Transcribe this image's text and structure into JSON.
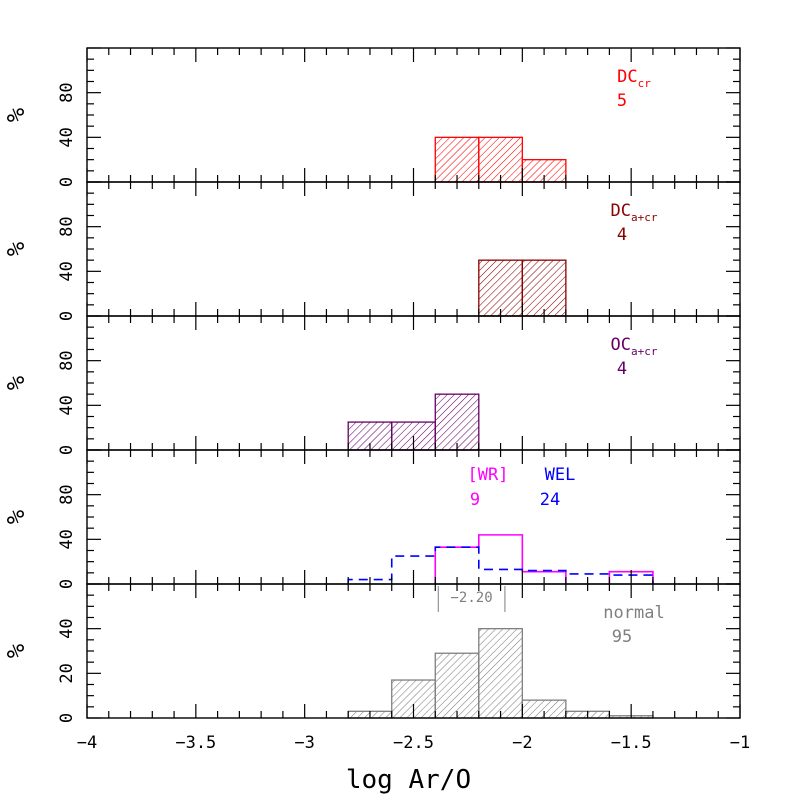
{
  "chart_data": {
    "type": "bar",
    "xlabel": "log Ar/O",
    "xlim": [
      -4,
      -1
    ],
    "x_ticks": [
      "−4",
      "−3.5",
      "−3",
      "−2.5",
      "−2",
      "−1.5",
      "−1"
    ],
    "panels": [
      {
        "name": "DC_cr",
        "ylabel": "%",
        "ylim": [
          0,
          120
        ],
        "y_ticks": [
          "0",
          "40",
          "80"
        ],
        "color": "#ff0000",
        "label_main": "DC",
        "label_sub": "cr",
        "count": "5",
        "series": [
          {
            "style": "hatched",
            "color": "#ff0000",
            "bins": [
              {
                "x0": -2.4,
                "x1": -2.2,
                "value": 40
              },
              {
                "x0": -2.2,
                "x1": -2.0,
                "value": 40
              },
              {
                "x0": -2.0,
                "x1": -1.8,
                "value": 20
              }
            ]
          }
        ]
      },
      {
        "name": "DC_a+cr",
        "ylabel": "%",
        "ylim": [
          0,
          120
        ],
        "y_ticks": [
          "0",
          "40",
          "80"
        ],
        "color": "#8b0000",
        "label_main": "DC",
        "label_sub": "a+cr",
        "count": "4",
        "series": [
          {
            "style": "hatched",
            "color": "#8b0000",
            "bins": [
              {
                "x0": -2.2,
                "x1": -2.0,
                "value": 50
              },
              {
                "x0": -2.0,
                "x1": -1.8,
                "value": 50
              }
            ]
          }
        ]
      },
      {
        "name": "OC_a+cr",
        "ylabel": "%",
        "ylim": [
          0,
          120
        ],
        "y_ticks": [
          "0",
          "40",
          "80"
        ],
        "color": "#660066",
        "label_main": "OC",
        "label_sub": "a+cr",
        "count": "4",
        "series": [
          {
            "style": "hatched",
            "color": "#660066",
            "bins": [
              {
                "x0": -2.8,
                "x1": -2.6,
                "value": 25
              },
              {
                "x0": -2.6,
                "x1": -2.4,
                "value": 25
              },
              {
                "x0": -2.4,
                "x1": -2.2,
                "value": 50
              }
            ]
          }
        ]
      },
      {
        "name": "WR_WEL",
        "ylabel": "%",
        "ylim": [
          0,
          120
        ],
        "y_ticks": [
          "0",
          "40",
          "80"
        ],
        "labels": [
          {
            "text": "[WR]",
            "count": "9",
            "color": "#ff00ff"
          },
          {
            "text": "WEL",
            "count": "24",
            "color": "#0000ff"
          }
        ],
        "series": [
          {
            "name": "[WR]",
            "style": "solid",
            "color": "#ff00ff",
            "bins": [
              {
                "x0": -2.4,
                "x1": -2.2,
                "value": 33
              },
              {
                "x0": -2.2,
                "x1": -2.0,
                "value": 44
              },
              {
                "x0": -2.0,
                "x1": -1.8,
                "value": 11
              },
              {
                "x0": -1.6,
                "x1": -1.4,
                "value": 11
              }
            ]
          },
          {
            "name": "WEL",
            "style": "dashed",
            "color": "#0000ff",
            "bins": [
              {
                "x0": -2.8,
                "x1": -2.6,
                "value": 4
              },
              {
                "x0": -2.6,
                "x1": -2.4,
                "value": 25
              },
              {
                "x0": -2.4,
                "x1": -2.2,
                "value": 33
              },
              {
                "x0": -2.2,
                "x1": -2.0,
                "value": 13
              },
              {
                "x0": -2.0,
                "x1": -1.8,
                "value": 12
              },
              {
                "x0": -1.8,
                "x1": -1.6,
                "value": 9
              },
              {
                "x0": -1.6,
                "x1": -1.4,
                "value": 8
              }
            ]
          }
        ]
      },
      {
        "name": "normal",
        "ylabel": "%",
        "ylim": [
          0,
          60
        ],
        "y_ticks": [
          "0",
          "20",
          "40"
        ],
        "color": "#7f7f7f",
        "label_main": "normal",
        "label_sub": "",
        "count": "95",
        "annotation": {
          "text": "−2.20",
          "x0": -2.4,
          "x1": -2.08,
          "color": "#7f7f7f"
        },
        "series": [
          {
            "style": "hatched",
            "color": "#7f7f7f",
            "bins": [
              {
                "x0": -2.8,
                "x1": -2.6,
                "value": 3
              },
              {
                "x0": -2.6,
                "x1": -2.4,
                "value": 17
              },
              {
                "x0": -2.4,
                "x1": -2.2,
                "value": 29
              },
              {
                "x0": -2.2,
                "x1": -2.0,
                "value": 40
              },
              {
                "x0": -2.0,
                "x1": -1.8,
                "value": 8
              },
              {
                "x0": -1.8,
                "x1": -1.6,
                "value": 3
              },
              {
                "x0": -1.6,
                "x1": -1.4,
                "value": 1
              }
            ]
          }
        ]
      }
    ]
  }
}
